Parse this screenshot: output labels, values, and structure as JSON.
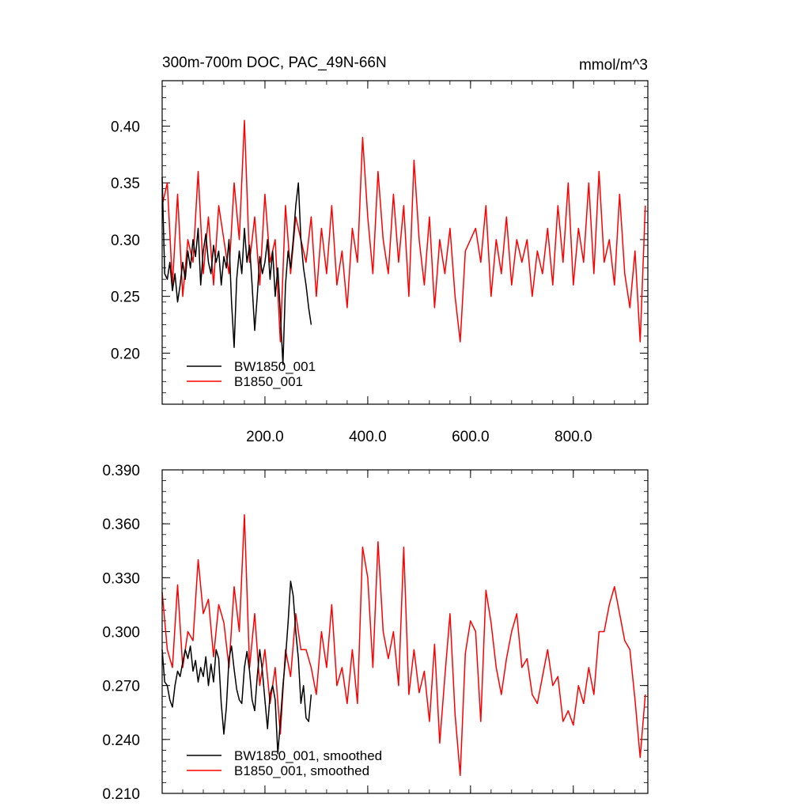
{
  "chart_data": [
    {
      "type": "line",
      "title": "300m-700m DOC, PAC_49N-66N",
      "units": "mmol/m^3",
      "xlim": [
        0,
        945
      ],
      "ylim": [
        0.155,
        0.44
      ],
      "x_ticks": [
        200,
        400,
        600,
        800
      ],
      "x_tick_labels": [
        "200.0",
        "400.0",
        "600.0",
        "800.0"
      ],
      "y_ticks": [
        0.2,
        0.25,
        0.3,
        0.35,
        0.4
      ],
      "y_tick_labels": [
        "0.20",
        "0.25",
        "0.30",
        "0.35",
        "0.40"
      ],
      "legend_position": "bottom-left",
      "series": [
        {
          "name": "BW1850_001",
          "color": "#000000",
          "x": [
            0,
            5,
            10,
            15,
            20,
            25,
            30,
            35,
            40,
            45,
            50,
            55,
            60,
            65,
            70,
            75,
            80,
            85,
            90,
            95,
            100,
            105,
            110,
            115,
            120,
            125,
            130,
            135,
            140,
            145,
            150,
            155,
            160,
            165,
            170,
            175,
            180,
            185,
            190,
            195,
            200,
            205,
            210,
            215,
            220,
            225,
            230,
            235,
            240,
            245,
            250,
            255,
            260,
            265,
            270,
            275,
            280,
            285,
            290
          ],
          "values": [
            0.355,
            0.27,
            0.265,
            0.28,
            0.255,
            0.27,
            0.245,
            0.26,
            0.28,
            0.265,
            0.29,
            0.275,
            0.3,
            0.285,
            0.31,
            0.26,
            0.29,
            0.305,
            0.28,
            0.27,
            0.295,
            0.28,
            0.29,
            0.26,
            0.285,
            0.275,
            0.3,
            0.245,
            0.205,
            0.265,
            0.29,
            0.27,
            0.31,
            0.28,
            0.295,
            0.26,
            0.22,
            0.25,
            0.285,
            0.27,
            0.28,
            0.3,
            0.265,
            0.29,
            0.25,
            0.275,
            0.235,
            0.19,
            0.26,
            0.29,
            0.275,
            0.3,
            0.33,
            0.35,
            0.3,
            0.275,
            0.26,
            0.24,
            0.225
          ]
        },
        {
          "name": "B1850_001",
          "color": "#ff0000",
          "x": [
            0,
            10,
            20,
            30,
            40,
            50,
            60,
            70,
            80,
            90,
            100,
            110,
            120,
            130,
            140,
            150,
            160,
            170,
            180,
            190,
            200,
            210,
            220,
            230,
            240,
            250,
            260,
            270,
            280,
            290,
            300,
            310,
            320,
            330,
            340,
            350,
            360,
            370,
            380,
            390,
            400,
            410,
            420,
            430,
            440,
            450,
            460,
            470,
            480,
            490,
            500,
            510,
            520,
            530,
            540,
            550,
            560,
            570,
            580,
            590,
            600,
            610,
            620,
            630,
            640,
            650,
            660,
            670,
            680,
            690,
            700,
            710,
            720,
            730,
            740,
            750,
            760,
            770,
            780,
            790,
            800,
            810,
            820,
            830,
            840,
            850,
            860,
            870,
            880,
            890,
            900,
            910,
            920,
            930,
            940
          ],
          "values": [
            0.33,
            0.35,
            0.26,
            0.34,
            0.25,
            0.3,
            0.28,
            0.36,
            0.27,
            0.32,
            0.26,
            0.33,
            0.3,
            0.27,
            0.35,
            0.3,
            0.405,
            0.28,
            0.32,
            0.26,
            0.34,
            0.28,
            0.3,
            0.21,
            0.33,
            0.27,
            0.32,
            0.3,
            0.28,
            0.32,
            0.25,
            0.31,
            0.27,
            0.33,
            0.26,
            0.29,
            0.24,
            0.31,
            0.28,
            0.39,
            0.32,
            0.27,
            0.36,
            0.3,
            0.27,
            0.34,
            0.28,
            0.33,
            0.25,
            0.37,
            0.3,
            0.26,
            0.32,
            0.24,
            0.3,
            0.27,
            0.31,
            0.25,
            0.21,
            0.29,
            0.3,
            0.31,
            0.28,
            0.33,
            0.25,
            0.3,
            0.27,
            0.32,
            0.26,
            0.3,
            0.28,
            0.3,
            0.25,
            0.29,
            0.27,
            0.31,
            0.26,
            0.33,
            0.28,
            0.35,
            0.26,
            0.31,
            0.28,
            0.35,
            0.27,
            0.36,
            0.28,
            0.3,
            0.26,
            0.34,
            0.27,
            0.24,
            0.29,
            0.21,
            0.33
          ]
        }
      ]
    },
    {
      "type": "line",
      "title": "",
      "xlim": [
        0,
        945
      ],
      "ylim": [
        0.21,
        0.39
      ],
      "x_ticks": [
        200,
        400,
        600,
        800
      ],
      "x_tick_labels": [
        "",
        "",
        "",
        ""
      ],
      "y_ticks": [
        0.21,
        0.24,
        0.27,
        0.3,
        0.33,
        0.36,
        0.39
      ],
      "y_tick_labels": [
        "0.210",
        "0.240",
        "0.270",
        "0.300",
        "0.330",
        "0.360",
        "0.390"
      ],
      "legend_position": "bottom-left",
      "series": [
        {
          "name": "BW1850_001, smoothed",
          "color": "#000000",
          "x": [
            0,
            5,
            10,
            15,
            20,
            25,
            30,
            35,
            40,
            45,
            50,
            55,
            60,
            65,
            70,
            75,
            80,
            85,
            90,
            95,
            100,
            105,
            110,
            115,
            120,
            125,
            130,
            135,
            140,
            145,
            150,
            155,
            160,
            165,
            170,
            175,
            180,
            185,
            190,
            195,
            200,
            205,
            210,
            215,
            220,
            225,
            230,
            235,
            240,
            245,
            250,
            255,
            260,
            265,
            270,
            275,
            280,
            285,
            290
          ],
          "values": [
            0.29,
            0.272,
            0.27,
            0.262,
            0.258,
            0.27,
            0.278,
            0.275,
            0.283,
            0.29,
            0.285,
            0.292,
            0.278,
            0.284,
            0.272,
            0.28,
            0.275,
            0.286,
            0.27,
            0.282,
            0.272,
            0.29,
            0.285,
            0.26,
            0.243,
            0.258,
            0.285,
            0.292,
            0.279,
            0.268,
            0.262,
            0.26,
            0.28,
            0.289,
            0.278,
            0.262,
            0.256,
            0.275,
            0.29,
            0.278,
            0.262,
            0.246,
            0.265,
            0.27,
            0.262,
            0.232,
            0.25,
            0.27,
            0.285,
            0.305,
            0.328,
            0.32,
            0.3,
            0.285,
            0.26,
            0.27,
            0.252,
            0.25,
            0.265
          ]
        },
        {
          "name": "B1850_001, smoothed",
          "color": "#ff0000",
          "x": [
            0,
            10,
            20,
            30,
            40,
            50,
            60,
            70,
            80,
            90,
            100,
            110,
            120,
            130,
            140,
            150,
            160,
            170,
            180,
            190,
            200,
            210,
            220,
            230,
            240,
            250,
            260,
            270,
            280,
            290,
            300,
            310,
            320,
            330,
            340,
            350,
            360,
            370,
            380,
            390,
            400,
            410,
            420,
            430,
            440,
            450,
            460,
            470,
            480,
            490,
            500,
            510,
            520,
            530,
            540,
            550,
            560,
            570,
            580,
            590,
            600,
            610,
            620,
            630,
            640,
            650,
            660,
            670,
            680,
            690,
            700,
            710,
            720,
            730,
            740,
            750,
            760,
            770,
            780,
            790,
            800,
            810,
            820,
            830,
            840,
            850,
            860,
            870,
            880,
            890,
            900,
            910,
            920,
            930,
            940
          ],
          "values": [
            0.322,
            0.29,
            0.28,
            0.326,
            0.28,
            0.3,
            0.295,
            0.34,
            0.31,
            0.318,
            0.286,
            0.315,
            0.305,
            0.28,
            0.325,
            0.3,
            0.365,
            0.28,
            0.31,
            0.27,
            0.29,
            0.26,
            0.28,
            0.243,
            0.29,
            0.275,
            0.31,
            0.29,
            0.29,
            0.28,
            0.265,
            0.3,
            0.28,
            0.315,
            0.27,
            0.28,
            0.26,
            0.29,
            0.26,
            0.347,
            0.33,
            0.28,
            0.35,
            0.3,
            0.285,
            0.3,
            0.27,
            0.347,
            0.265,
            0.29,
            0.266,
            0.278,
            0.25,
            0.293,
            0.238,
            0.275,
            0.31,
            0.254,
            0.22,
            0.288,
            0.306,
            0.3,
            0.25,
            0.323,
            0.305,
            0.28,
            0.265,
            0.285,
            0.3,
            0.31,
            0.28,
            0.285,
            0.265,
            0.26,
            0.275,
            0.29,
            0.27,
            0.275,
            0.25,
            0.256,
            0.248,
            0.27,
            0.26,
            0.28,
            0.265,
            0.3,
            0.3,
            0.315,
            0.325,
            0.31,
            0.295,
            0.29,
            0.262,
            0.23,
            0.265
          ]
        }
      ]
    }
  ]
}
